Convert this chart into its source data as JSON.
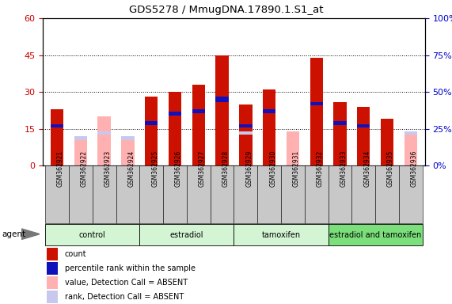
{
  "title": "GDS5278 / MmugDNA.17890.1.S1_at",
  "samples": [
    "GSM362921",
    "GSM362922",
    "GSM362923",
    "GSM362924",
    "GSM362925",
    "GSM362926",
    "GSM362927",
    "GSM362928",
    "GSM362929",
    "GSM362930",
    "GSM362931",
    "GSM362932",
    "GSM362933",
    "GSM362934",
    "GSM362935",
    "GSM362936"
  ],
  "count_values": [
    23,
    null,
    null,
    null,
    28,
    30,
    33,
    45,
    25,
    31,
    null,
    44,
    26,
    24,
    19,
    null
  ],
  "rank_values": [
    17,
    null,
    null,
    null,
    18,
    22,
    23,
    28,
    17,
    23,
    null,
    26,
    18,
    17,
    null,
    null
  ],
  "blue_height": [
    1.5,
    null,
    null,
    null,
    1.5,
    1.5,
    1.5,
    2.0,
    1.5,
    1.5,
    null,
    1.5,
    1.5,
    1.5,
    null,
    null
  ],
  "absent_count": [
    null,
    12,
    20,
    12,
    null,
    null,
    null,
    null,
    null,
    null,
    14,
    null,
    null,
    null,
    null,
    14
  ],
  "absent_rank": [
    null,
    12,
    14,
    12,
    null,
    null,
    null,
    null,
    14,
    null,
    null,
    null,
    null,
    null,
    null,
    14
  ],
  "groups": [
    {
      "label": "control",
      "start": 0,
      "end": 4,
      "color": "#d4f5d4"
    },
    {
      "label": "estradiol",
      "start": 4,
      "end": 8,
      "color": "#d4f5d4"
    },
    {
      "label": "tamoxifen",
      "start": 8,
      "end": 12,
      "color": "#d4f5d4"
    },
    {
      "label": "estradiol and tamoxifen",
      "start": 12,
      "end": 16,
      "color": "#7be07b"
    }
  ],
  "ylim_left": [
    0,
    60
  ],
  "ylim_right": [
    0,
    100
  ],
  "yticks_left": [
    0,
    15,
    30,
    45,
    60
  ],
  "yticks_right": [
    0,
    25,
    50,
    75,
    100
  ],
  "color_left_axis": "#cc0000",
  "color_right_axis": "#0000cc",
  "color_count": "#cc1100",
  "color_rank": "#1111bb",
  "color_absent_count": "#ffb0b0",
  "color_absent_rank": "#c8c8ee",
  "color_gray_cell": "#c8c8c8",
  "legend_labels": [
    "count",
    "percentile rank within the sample",
    "value, Detection Call = ABSENT",
    "rank, Detection Call = ABSENT"
  ],
  "legend_colors": [
    "#cc1100",
    "#1111bb",
    "#ffb0b0",
    "#c8c8ee"
  ]
}
